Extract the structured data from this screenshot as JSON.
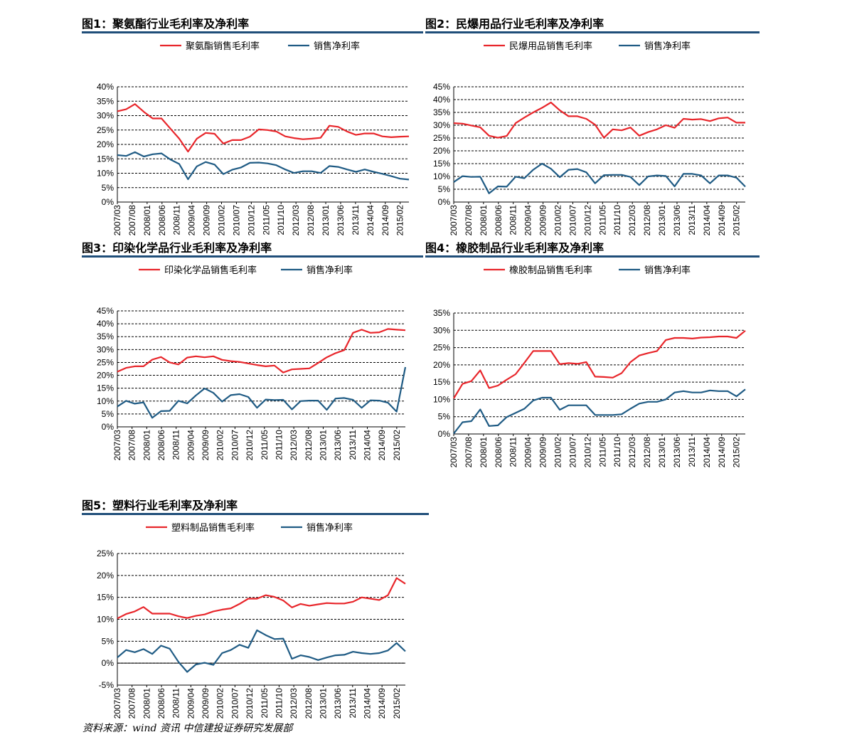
{
  "source": "资料来源：wind 资讯  中信建投证券研究发展部",
  "colors": {
    "margin": "#e8262b",
    "net": "#1f5b84",
    "rule": "#1f4e79",
    "grid": "#000000"
  },
  "x_labels": [
    "2007/03",
    "2007/08",
    "2008/01",
    "2008/06",
    "2008/11",
    "2009/04",
    "2009/09",
    "2010/02",
    "2010/07",
    "2010/12",
    "2011/05",
    "2011/10",
    "2012/03",
    "2012/08",
    "2013/01",
    "2013/06",
    "2013/11",
    "2014/04",
    "2014/09",
    "2015/02"
  ],
  "chart_data": [
    {
      "type": "line",
      "title": "图1：聚氨酯行业毛利率及净利率",
      "y_ticks": [
        "40%",
        "35%",
        "30%",
        "25%",
        "20%",
        "15%",
        "10%",
        "5%",
        "0%"
      ],
      "ylim": [
        0,
        40
      ],
      "x_count": 34,
      "legend": "top",
      "grid": true,
      "series": [
        {
          "name": "聚氨酯销售毛利率",
          "color": "margin",
          "values": [
            31.5,
            32.2,
            34.0,
            31.3,
            29.0,
            29.0,
            25.5,
            22.0,
            17.5,
            22.0,
            24.0,
            23.7,
            20.3,
            21.5,
            21.5,
            22.7,
            25.2,
            25.0,
            24.5,
            22.8,
            22.2,
            21.8,
            22.0,
            22.3,
            26.5,
            26.1,
            24.5,
            23.3,
            23.8,
            23.8,
            22.8,
            22.5,
            22.7,
            22.8
          ]
        },
        {
          "name": "销售净利率",
          "color": "net",
          "values": [
            16.3,
            16.0,
            17.3,
            15.8,
            16.6,
            16.9,
            14.8,
            13.2,
            7.9,
            12.4,
            13.9,
            13.0,
            9.7,
            11.2,
            12.0,
            13.6,
            13.7,
            13.4,
            12.8,
            11.3,
            10.1,
            10.7,
            10.7,
            10.1,
            12.5,
            12.2,
            11.3,
            10.5,
            11.3,
            10.5,
            9.8,
            9.0,
            8.1,
            7.8
          ]
        }
      ]
    },
    {
      "type": "line",
      "title": "图2：民爆用品行业毛利率及净利率",
      "y_ticks": [
        "45%",
        "40%",
        "35%",
        "30%",
        "25%",
        "20%",
        "15%",
        "10%",
        "5%",
        "0%"
      ],
      "ylim": [
        0,
        45
      ],
      "x_count": 34,
      "legend": "top",
      "grid": true,
      "series": [
        {
          "name": "民爆用品销售毛利率",
          "color": "margin",
          "values": [
            30.8,
            30.6,
            29.9,
            29.2,
            25.9,
            25.1,
            25.8,
            30.8,
            33.0,
            35.0,
            36.8,
            38.9,
            35.8,
            33.5,
            33.5,
            32.5,
            30.2,
            25.1,
            28.4,
            28.0,
            29.1,
            25.9,
            27.3,
            28.4,
            30.0,
            29.0,
            32.5,
            32.2,
            32.4,
            31.6,
            32.7,
            33.0,
            31.0,
            31.0
          ]
        },
        {
          "name": "销售净利率",
          "color": "net",
          "values": [
            7.8,
            10.1,
            9.8,
            9.9,
            3.4,
            6.1,
            6.0,
            9.9,
            9.3,
            12.6,
            15.0,
            13.0,
            9.7,
            12.6,
            12.9,
            11.6,
            7.3,
            10.5,
            10.6,
            10.6,
            9.8,
            6.6,
            10.0,
            10.4,
            10.2,
            6.1,
            11.0,
            11.0,
            10.4,
            7.3,
            10.4,
            10.4,
            9.5,
            6.0
          ]
        }
      ]
    },
    {
      "type": "line",
      "title": "图3：印染化学品行业毛利率及净利率",
      "y_ticks": [
        "45%",
        "40%",
        "35%",
        "30%",
        "25%",
        "20%",
        "15%",
        "10%",
        "5%",
        "0%"
      ],
      "ylim": [
        0,
        45
      ],
      "x_count": 34,
      "legend": "top",
      "grid": true,
      "series": [
        {
          "name": "印染化学品销售毛利率",
          "color": "margin",
          "values": [
            21.4,
            22.9,
            23.5,
            23.5,
            26.1,
            27.1,
            25.0,
            24.2,
            26.9,
            27.4,
            27.0,
            27.4,
            26.0,
            25.5,
            25.2,
            24.6,
            24.0,
            23.5,
            23.8,
            21.1,
            22.3,
            22.5,
            22.7,
            24.8,
            27.0,
            28.6,
            29.8,
            36.5,
            37.7,
            36.5,
            36.7,
            38.0,
            37.7,
            37.5
          ]
        },
        {
          "name": "销售净利率",
          "color": "net",
          "values": [
            7.9,
            10.1,
            9.0,
            9.5,
            3.5,
            6.1,
            6.2,
            10.1,
            9.1,
            12.2,
            14.9,
            13.2,
            9.8,
            12.3,
            12.7,
            11.6,
            7.4,
            10.6,
            10.4,
            10.5,
            6.8,
            10.0,
            10.2,
            10.2,
            6.6,
            11.0,
            11.2,
            10.5,
            7.4,
            10.3,
            10.2,
            9.4,
            5.9,
            23.2
          ]
        }
      ]
    },
    {
      "type": "line",
      "title": "图4：橡胶制品行业毛利率及净利率",
      "y_ticks": [
        "35%",
        "30%",
        "25%",
        "20%",
        "15%",
        "10%",
        "5%",
        "0%"
      ],
      "ylim": [
        0,
        35
      ],
      "x_count": 34,
      "legend": "top",
      "grid": true,
      "series": [
        {
          "name": "橡胶制品销售毛利率",
          "color": "margin",
          "values": [
            10.3,
            14.5,
            15.3,
            18.4,
            13.3,
            14.0,
            15.7,
            17.3,
            20.6,
            24.0,
            24.0,
            24.0,
            20.2,
            20.5,
            20.3,
            20.8,
            16.6,
            16.5,
            16.3,
            17.6,
            20.8,
            22.7,
            23.4,
            24.0,
            27.2,
            27.8,
            27.8,
            27.6,
            27.9,
            28.0,
            28.2,
            28.2,
            27.8,
            29.9
          ]
        },
        {
          "name": "销售净利率",
          "color": "net",
          "values": [
            0.1,
            3.4,
            3.7,
            7.1,
            2.3,
            2.5,
            4.9,
            6.1,
            7.3,
            9.7,
            10.5,
            10.5,
            7.0,
            8.3,
            8.3,
            8.3,
            5.5,
            5.5,
            5.5,
            5.7,
            7.3,
            8.8,
            9.3,
            9.3,
            10.0,
            12.0,
            12.4,
            12.0,
            12.0,
            12.6,
            12.4,
            12.4,
            10.9,
            12.9
          ]
        }
      ]
    },
    {
      "type": "line",
      "title": "图5：塑料行业毛利率及净利率",
      "y_ticks": [
        "25%",
        "20%",
        "15%",
        "10%",
        "5%",
        "0%",
        "-5%"
      ],
      "ylim": [
        -5,
        25
      ],
      "x_count": 34,
      "legend": "top",
      "grid": true,
      "series": [
        {
          "name": "塑料制品销售毛利率",
          "color": "margin",
          "values": [
            10.2,
            11.2,
            11.8,
            12.8,
            11.3,
            11.3,
            11.3,
            10.7,
            10.3,
            10.8,
            11.1,
            11.8,
            12.2,
            12.5,
            13.5,
            14.7,
            14.7,
            15.5,
            15.1,
            14.3,
            12.7,
            13.5,
            13.1,
            13.4,
            13.7,
            13.6,
            13.6,
            14.0,
            15.0,
            14.7,
            14.4,
            15.5,
            19.4,
            18.1
          ]
        },
        {
          "name": "销售净利率",
          "color": "net",
          "values": [
            1.3,
            3.0,
            2.5,
            3.2,
            2.1,
            4.0,
            3.3,
            0.3,
            -2.0,
            -0.3,
            0.1,
            -0.4,
            2.3,
            3.0,
            4.2,
            3.5,
            7.5,
            6.4,
            5.5,
            5.6,
            1.0,
            1.8,
            1.4,
            0.7,
            1.3,
            1.8,
            1.9,
            2.6,
            2.3,
            2.1,
            2.3,
            2.9,
            4.6,
            2.7
          ]
        }
      ]
    }
  ]
}
